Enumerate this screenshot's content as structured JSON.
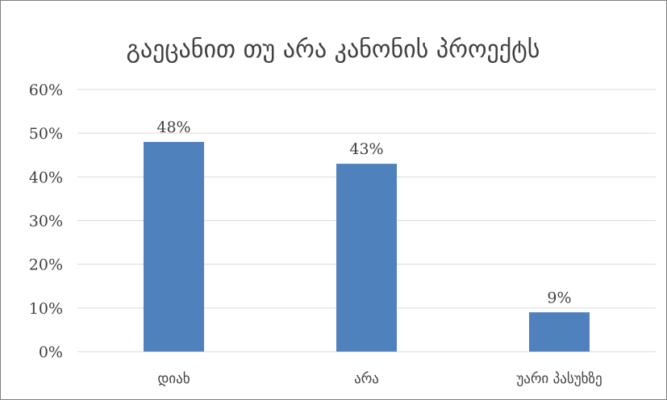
{
  "chart_data": {
    "type": "bar",
    "title": "გაეცანით თუ არა კანონის პროექტს",
    "categories": [
      "დიახ",
      "არა",
      "უარი პასუხზე"
    ],
    "values": [
      48,
      43,
      9
    ],
    "data_labels": [
      "48%",
      "43%",
      "9%"
    ],
    "yticks": [
      "0%",
      "10%",
      "20%",
      "30%",
      "40%",
      "50%",
      "60%"
    ],
    "ylim": [
      0,
      60
    ],
    "grid": true,
    "legend": "none",
    "bar_color": "#4f81bd",
    "grid_color": "#d9d9d9"
  }
}
